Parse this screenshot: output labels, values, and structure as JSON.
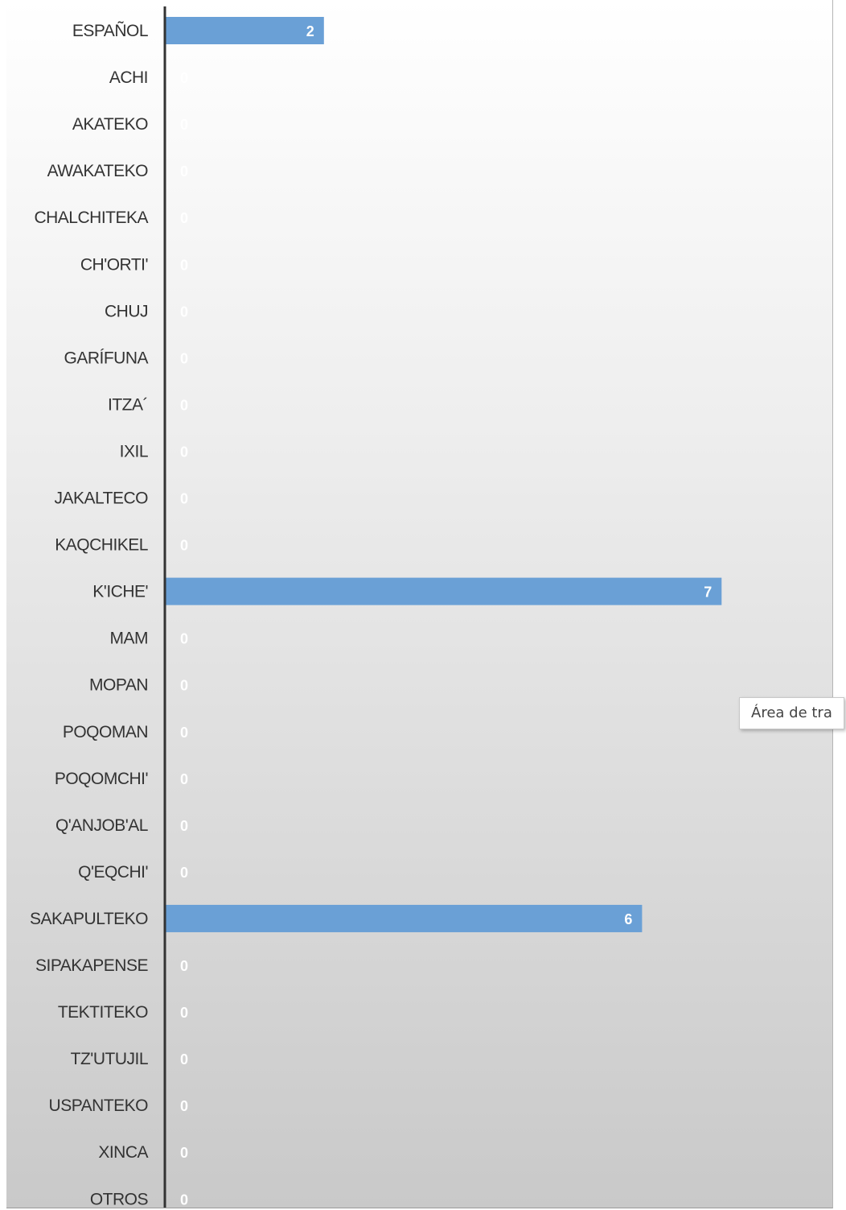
{
  "chart_data": {
    "type": "bar",
    "orientation": "horizontal",
    "categories": [
      "ESPAÑOL",
      "ACHI",
      "AKATEKO",
      "AWAKATEKO",
      "CHALCHITEKA",
      "CH'ORTI'",
      "CHUJ",
      "GARÍFUNA",
      "ITZA´",
      "IXIL",
      "JAKALTECO",
      "KAQCHIKEL",
      "K'ICHE'",
      "MAM",
      "MOPAN",
      "POQOMAN",
      "POQOMCHI'",
      "Q'ANJOB'AL",
      "Q'EQCHI'",
      "SAKAPULTEKO",
      "SIPAKAPENSE",
      "TEKTITEKO",
      "TZ'UTUJIL",
      "USPANTEKO",
      "XINCA",
      "OTROS"
    ],
    "values": [
      2,
      0,
      0,
      0,
      0,
      0,
      0,
      0,
      0,
      0,
      0,
      0,
      7,
      0,
      0,
      0,
      0,
      0,
      0,
      6,
      0,
      0,
      0,
      0,
      0,
      0
    ],
    "title": "",
    "xlabel": "",
    "ylabel": "",
    "xlim": [
      0,
      8.1
    ],
    "grid": false,
    "legend": "none",
    "colors": {
      "bar": "#6aa0d6",
      "axis": "#333333",
      "category_text": "#333333",
      "value_text": "#ffffff"
    }
  },
  "tooltip": {
    "text": "Área de tra"
  }
}
